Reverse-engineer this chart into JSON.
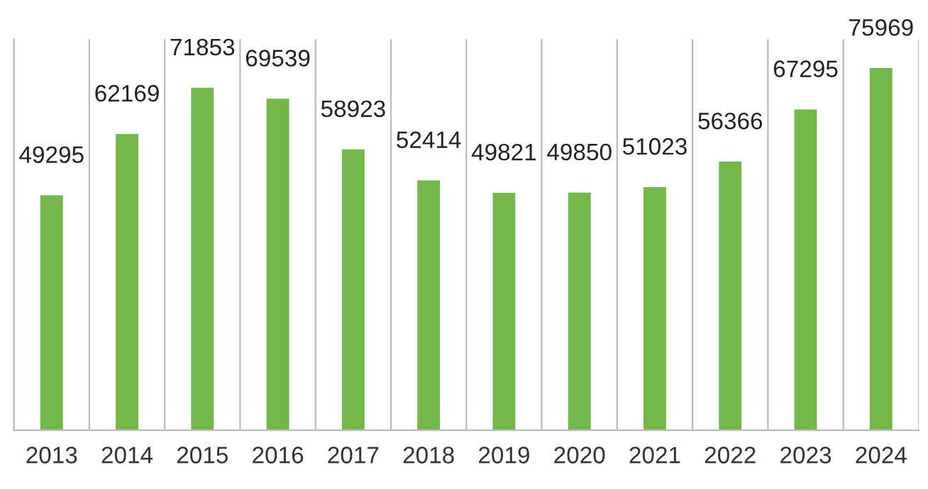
{
  "chart_data": {
    "type": "bar",
    "categories": [
      "2013",
      "2014",
      "2015",
      "2016",
      "2017",
      "2018",
      "2019",
      "2020",
      "2021",
      "2022",
      "2023",
      "2024"
    ],
    "values": [
      49295,
      62169,
      71853,
      69539,
      58923,
      52414,
      49821,
      49850,
      51023,
      56366,
      67295,
      75969
    ],
    "color": "#72b84a",
    "data_labels": true,
    "grid": "x"
  }
}
